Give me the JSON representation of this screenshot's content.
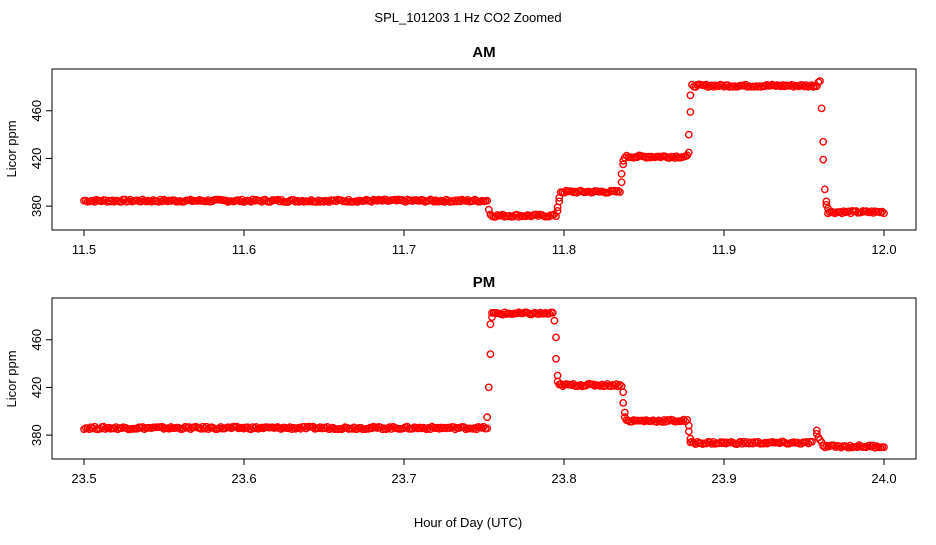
{
  "figure": {
    "title": "SPL_101203  1 Hz CO2 Zoomed",
    "xlabel": "Hour of Day (UTC)"
  },
  "chart_data": [
    {
      "type": "scatter",
      "title": "AM",
      "ylabel": "Licor ppm",
      "xlim": [
        11.5,
        12.0
      ],
      "ylim": [
        365,
        490
      ],
      "xticks": [
        "11.5",
        "11.6",
        "11.7",
        "11.8",
        "11.9",
        "12.0"
      ],
      "xtick_values": [
        11.5,
        11.6,
        11.7,
        11.8,
        11.9,
        12.0
      ],
      "yticks": [
        "380",
        "420",
        "460"
      ],
      "ytick_values": [
        380,
        420,
        460
      ],
      "marker": "open-circle",
      "color": "#ff0000",
      "segments": [
        {
          "x0": 11.5,
          "x1": 11.752,
          "y": 384.5
        },
        {
          "x0": 11.755,
          "x1": 11.795,
          "y": 372
        },
        {
          "x0": 11.798,
          "x1": 11.835,
          "y": 392
        },
        {
          "x0": 11.838,
          "x1": 11.877,
          "y": 421.5
        },
        {
          "x0": 11.88,
          "x1": 11.958,
          "y": 481
        },
        {
          "x0": 11.965,
          "x1": 12.0,
          "y": 375
        }
      ],
      "points": [
        [
          11.753,
          377
        ],
        [
          11.754,
          373
        ],
        [
          11.796,
          376
        ],
        [
          11.796,
          379
        ],
        [
          11.797,
          384
        ],
        [
          11.797,
          387
        ],
        [
          11.836,
          400
        ],
        [
          11.836,
          407
        ],
        [
          11.837,
          415
        ],
        [
          11.837,
          418
        ],
        [
          11.878,
          425
        ],
        [
          11.878,
          440
        ],
        [
          11.879,
          459
        ],
        [
          11.879,
          473
        ],
        [
          11.959,
          484
        ],
        [
          11.96,
          485
        ],
        [
          11.961,
          462
        ],
        [
          11.962,
          434
        ],
        [
          11.962,
          419
        ],
        [
          11.963,
          394
        ],
        [
          11.964,
          384
        ],
        [
          11.964,
          381
        ],
        [
          11.965,
          378
        ]
      ]
    },
    {
      "type": "scatter",
      "title": "PM",
      "ylabel": "Licor ppm",
      "xlim": [
        23.5,
        24.0
      ],
      "ylim": [
        365,
        490
      ],
      "xticks": [
        "23.5",
        "23.6",
        "23.7",
        "23.8",
        "23.9",
        "24.0"
      ],
      "xtick_values": [
        23.5,
        23.6,
        23.7,
        23.8,
        23.9,
        24.0
      ],
      "yticks": [
        "380",
        "420",
        "460"
      ],
      "ytick_values": [
        380,
        420,
        460
      ],
      "marker": "open-circle",
      "color": "#ff0000",
      "segments": [
        {
          "x0": 23.5,
          "x1": 23.752,
          "y": 386
        },
        {
          "x0": 23.755,
          "x1": 23.793,
          "y": 482
        },
        {
          "x0": 23.797,
          "x1": 23.836,
          "y": 422
        },
        {
          "x0": 23.839,
          "x1": 23.877,
          "y": 392
        },
        {
          "x0": 23.88,
          "x1": 23.955,
          "y": 373.5
        },
        {
          "x0": 23.962,
          "x1": 24.0,
          "y": 370.5
        }
      ],
      "points": [
        [
          23.752,
          395
        ],
        [
          23.753,
          420
        ],
        [
          23.754,
          448
        ],
        [
          23.754,
          473
        ],
        [
          23.755,
          479
        ],
        [
          23.794,
          476
        ],
        [
          23.795,
          462
        ],
        [
          23.795,
          444
        ],
        [
          23.796,
          430
        ],
        [
          23.796,
          425
        ],
        [
          23.837,
          416
        ],
        [
          23.837,
          407
        ],
        [
          23.838,
          399
        ],
        [
          23.838,
          395
        ],
        [
          23.878,
          388
        ],
        [
          23.878,
          383
        ],
        [
          23.879,
          377
        ],
        [
          23.879,
          374
        ],
        [
          23.958,
          381
        ],
        [
          23.958,
          384
        ],
        [
          23.959,
          378
        ],
        [
          23.96,
          376
        ],
        [
          23.961,
          374
        ]
      ]
    }
  ]
}
